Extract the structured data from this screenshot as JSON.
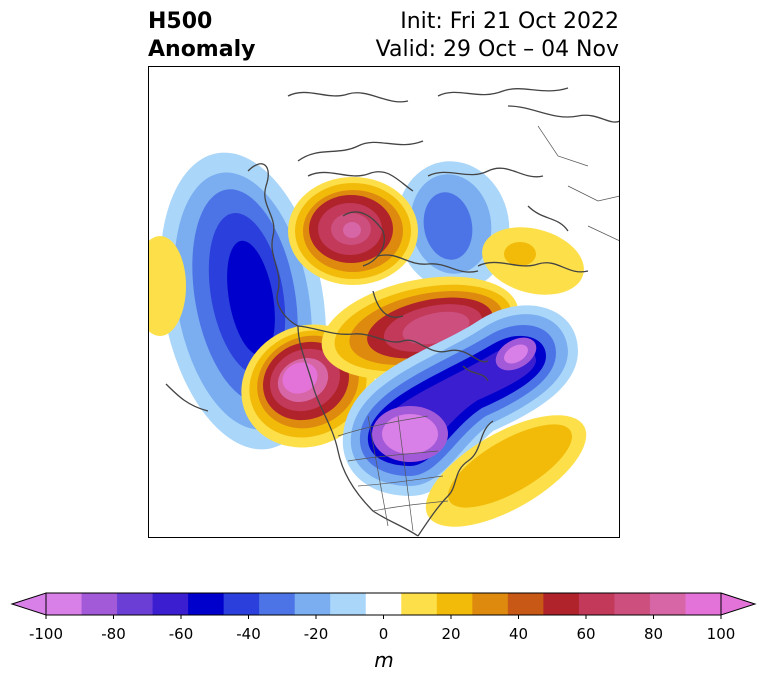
{
  "header": {
    "variable": "H500",
    "subtitle": "Anomaly",
    "init": "Init: Fri 21 Oct 2022",
    "valid": "Valid: 29 Oct – 04 Nov"
  },
  "colorbar": {
    "unit": "m",
    "ticks": [
      "-100",
      "-80",
      "-60",
      "-40",
      "-20",
      "0",
      "20",
      "40",
      "60",
      "80",
      "100"
    ],
    "levels": [
      "#d97fe8",
      "#a35ad9",
      "#6b3fd6",
      "#3a1ed0",
      "#0000cc",
      "#2a3fdb",
      "#4d74e6",
      "#7aaef0",
      "#aad6fa",
      "#ffffff",
      "#fde049",
      "#f2bb0a",
      "#de8a0f",
      "#c85815",
      "#b0232a",
      "#c2395a",
      "#cc4f7e",
      "#d766a6",
      "#e373d8"
    ],
    "extend_low": "#d97fe8",
    "extend_high": "#e373d8"
  },
  "map": {
    "projection": "polar-stereographic",
    "field": "500 hPa height anomaly",
    "features": [
      {
        "kind": "neg",
        "level": 6
      },
      {
        "kind": "neg",
        "level": 3
      },
      {
        "kind": "pos",
        "level": 3
      },
      {
        "kind": "pos",
        "level": 8
      },
      {
        "kind": "pos",
        "level": 8
      },
      {
        "kind": "pos",
        "level": 7
      },
      {
        "kind": "neg",
        "level": 9
      },
      {
        "kind": "neg",
        "level": 7
      },
      {
        "kind": "pos",
        "level": 2
      },
      {
        "kind": "pos",
        "level": 1
      },
      {
        "kind": "pos",
        "level": 1
      }
    ]
  }
}
